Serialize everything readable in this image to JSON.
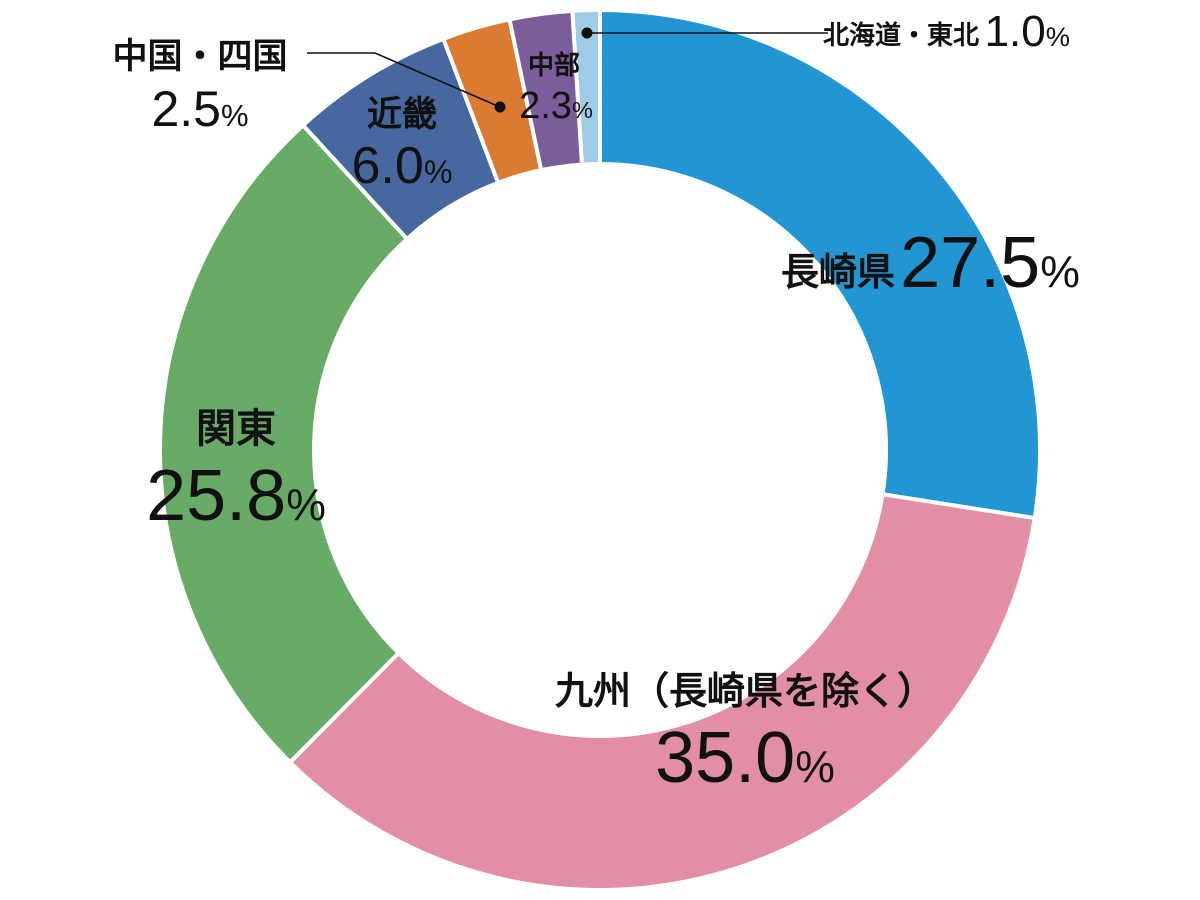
{
  "chart_data": {
    "type": "pie",
    "donut": true,
    "start_angle_deg": 0,
    "direction": "clockwise",
    "unit": "%",
    "slices": [
      {
        "label": "長崎県",
        "value": 27.5,
        "display": "27.5",
        "color": "#2196d3"
      },
      {
        "label": "九州（長崎県を除く）",
        "value": 35.0,
        "display": "35.0",
        "color": "#e28ea4"
      },
      {
        "label": "関東",
        "value": 25.8,
        "display": "25.8",
        "color": "#68ab67"
      },
      {
        "label": "近畿",
        "value": 6.0,
        "display": "6.0",
        "color": "#46689f"
      },
      {
        "label": "中国・四国",
        "value": 2.5,
        "display": "2.5",
        "color": "#db7b31"
      },
      {
        "label": "中部",
        "value": 2.3,
        "display": "2.3",
        "color": "#7a5d99"
      },
      {
        "label": "北海道・東北",
        "value": 1.0,
        "display": "1.0",
        "color": "#9dcbe8"
      }
    ]
  }
}
